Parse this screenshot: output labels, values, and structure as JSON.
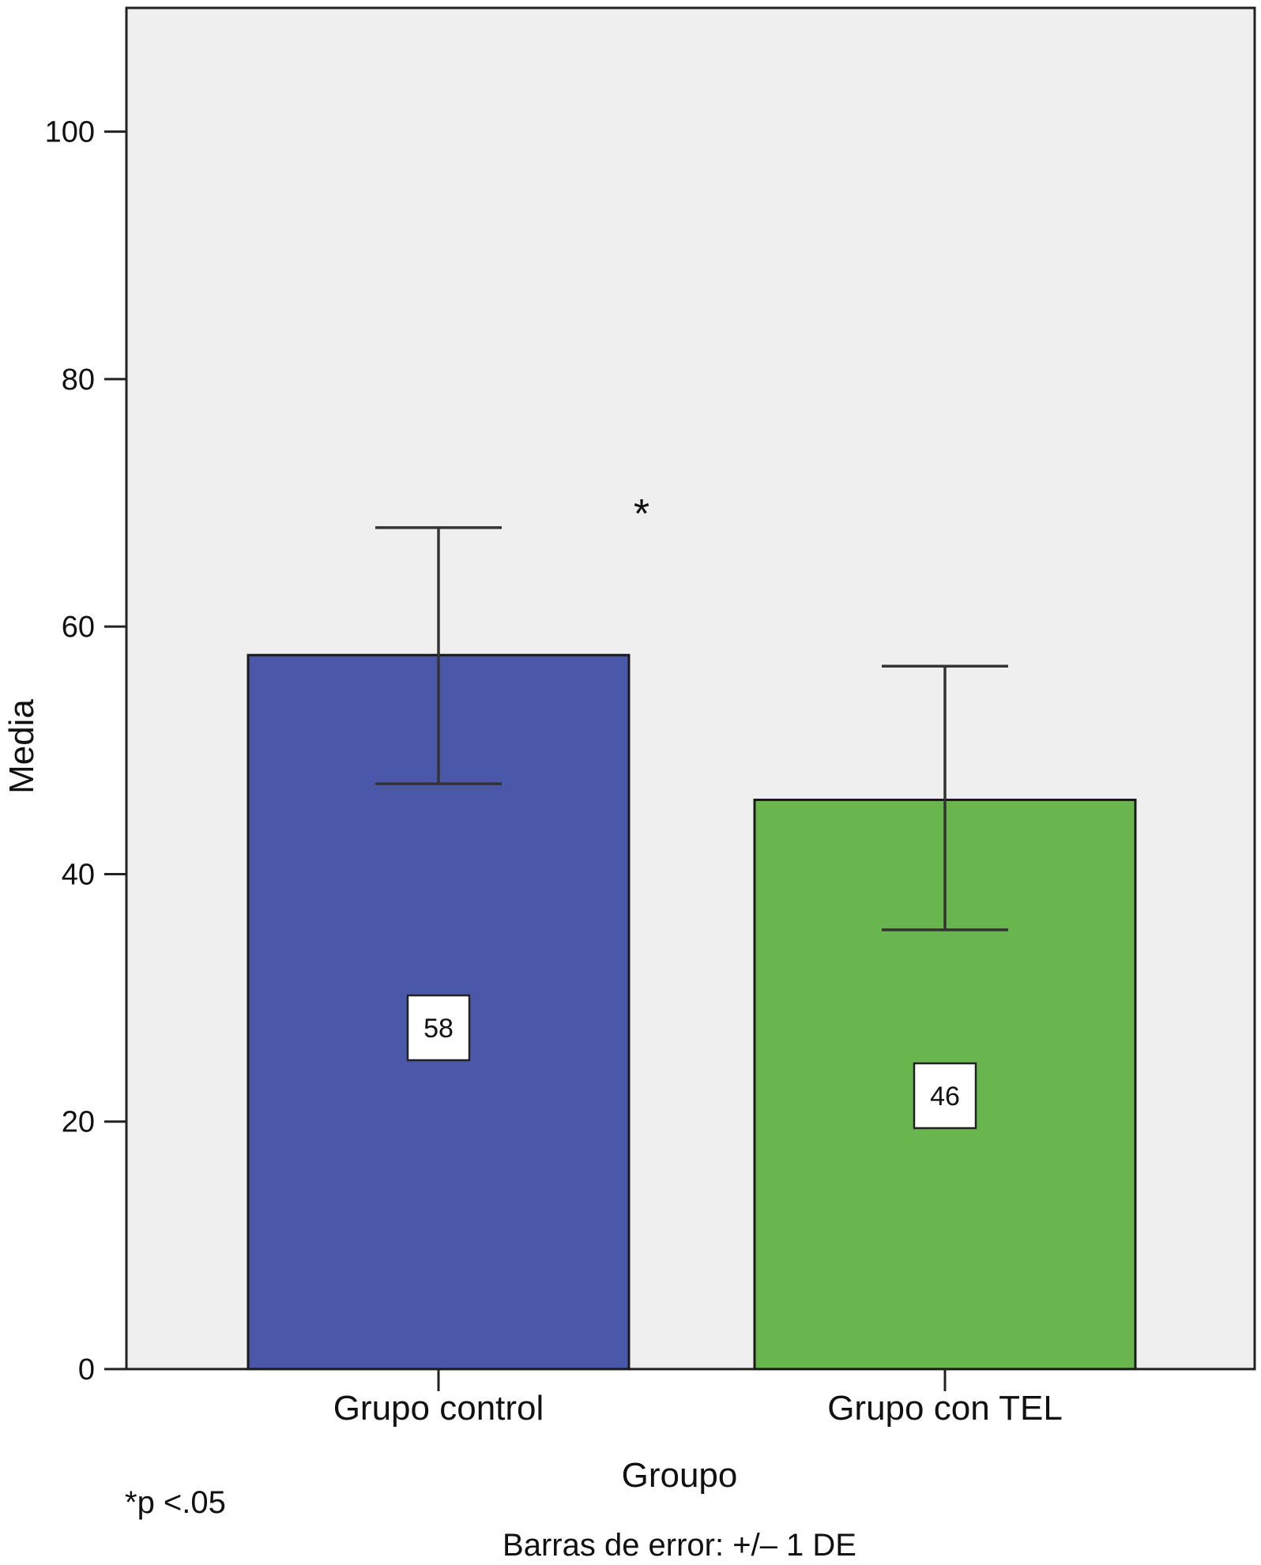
{
  "chart_data": {
    "type": "bar",
    "categories": [
      "Grupo control",
      "Grupo con TEL"
    ],
    "values": [
      57.7,
      46.0
    ],
    "data_labels": [
      "58",
      "46"
    ],
    "error_bars": {
      "lower": [
        47.3,
        35.5
      ],
      "upper": [
        68.0,
        56.8
      ]
    },
    "colors": [
      "#4b57a8",
      "#69b64f"
    ],
    "plot_background": "#efefef",
    "xlabel": "Groupo",
    "ylabel": "Media",
    "ylim": [
      0,
      110
    ],
    "yticks": [
      0,
      20,
      40,
      60,
      80,
      100
    ],
    "significance_marker": "*",
    "footnote": "*p <.05",
    "error_bar_note": "Barras de error: +/– 1 DE",
    "grid": false,
    "legend": "none"
  }
}
